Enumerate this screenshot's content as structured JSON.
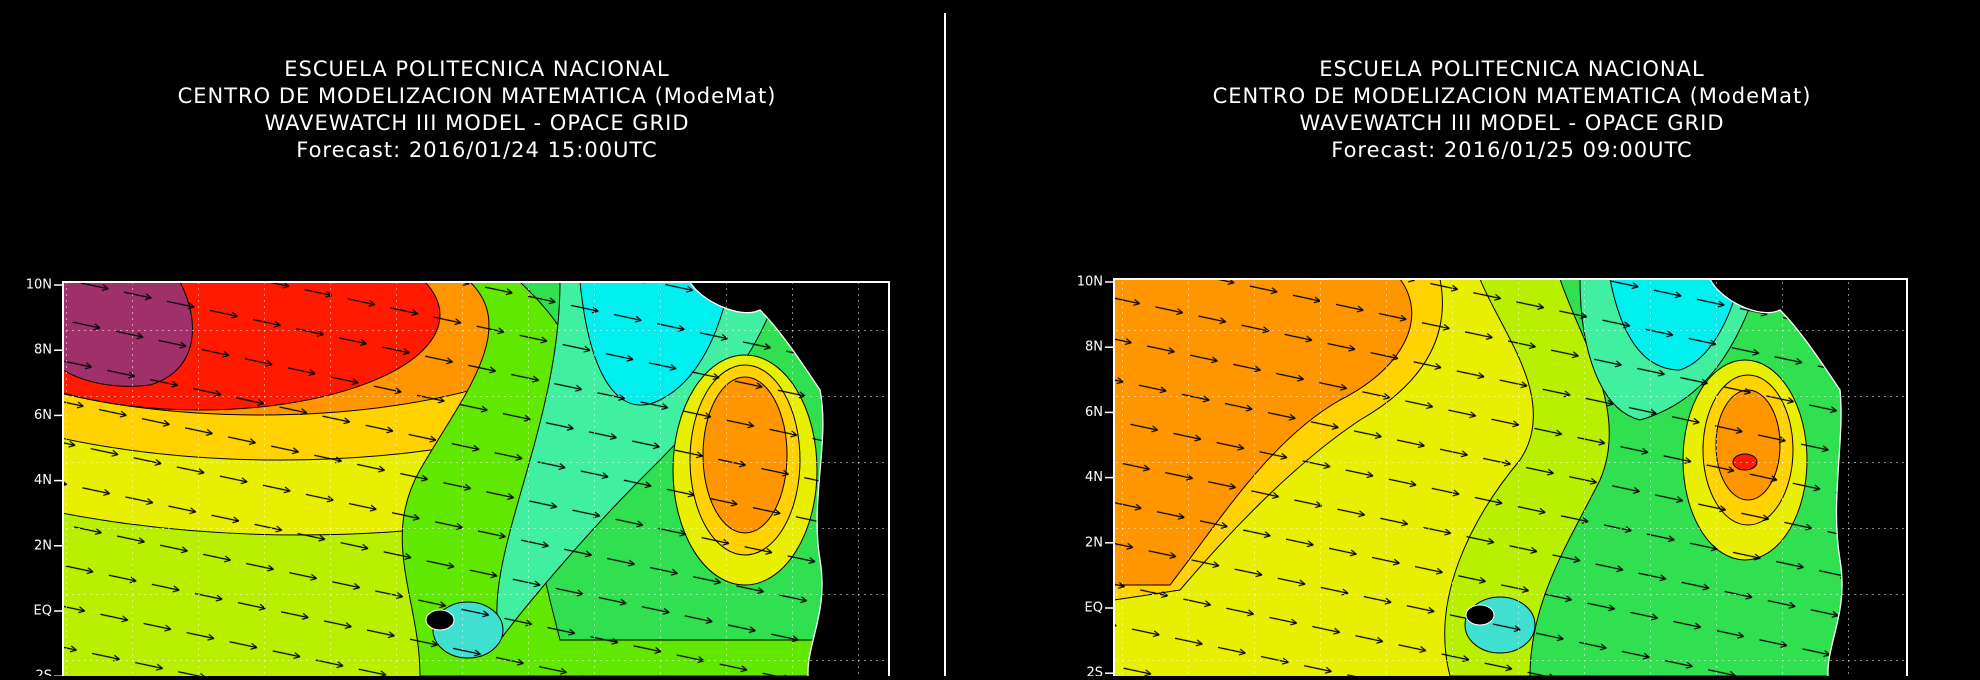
{
  "panels": [
    {
      "title_lines": [
        "ESCUELA POLITECNICA NACIONAL",
        "CENTRO DE MODELIZACION MATEMATICA (ModeMat)",
        "WAVEWATCH III MODEL - OPACE GRID",
        "Forecast: 2016/01/24 15:00UTC"
      ],
      "lat_labels": [
        "10N",
        "8N",
        "6N",
        "4N",
        "2N",
        "EQ",
        "2S"
      ]
    },
    {
      "title_lines": [
        "ESCUELA POLITECNICA NACIONAL",
        "CENTRO DE MODELIZACION MATEMATICA (ModeMat)",
        "WAVEWATCH III MODEL - OPACE GRID",
        "Forecast: 2016/01/25 09:00UTC"
      ],
      "lat_labels": [
        "10N",
        "8N",
        "6N",
        "4N",
        "2N",
        "EQ",
        "2S"
      ]
    }
  ]
}
